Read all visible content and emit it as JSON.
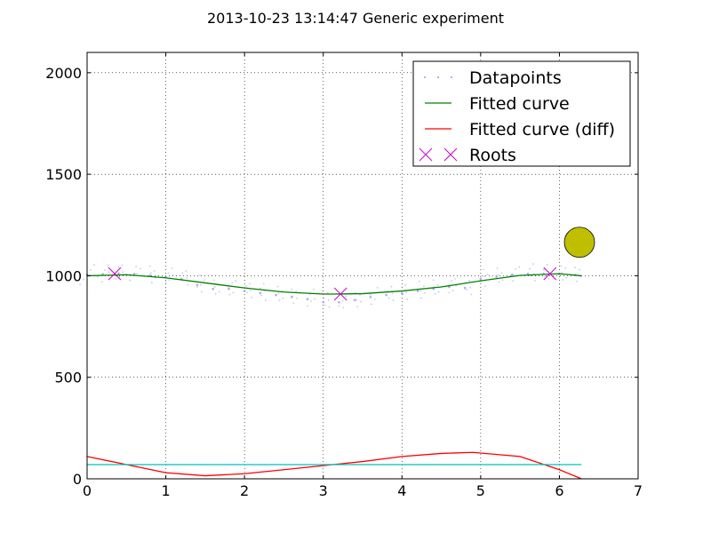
{
  "chart_data": {
    "type": "scatter",
    "title": "2013-10-23 13:14:47 Generic experiment",
    "xlabel": "",
    "ylabel": "",
    "xlim": [
      0,
      7
    ],
    "ylim": [
      0,
      2100
    ],
    "grid": true,
    "x_ticks": [
      "0",
      "1",
      "2",
      "3",
      "4",
      "5",
      "6",
      "7"
    ],
    "y_ticks": [
      "0",
      "500",
      "1000",
      "1500",
      "2000"
    ],
    "legend_position": "top-right",
    "legend": [
      {
        "label": "Datapoints",
        "marker": "dots",
        "color": "#9999ee"
      },
      {
        "label": "Fitted curve",
        "marker": "line",
        "color": "#008000"
      },
      {
        "label": "Fitted curve (diff)",
        "marker": "line",
        "color": "#ff0000"
      },
      {
        "label": "Roots",
        "marker": "x",
        "color": "#cc00cc"
      }
    ],
    "series": [
      {
        "name": "Datapoints",
        "color": "#9999ee",
        "x": [
          0.0,
          0.2,
          0.4,
          0.6,
          0.8,
          1.0,
          1.2,
          1.4,
          1.6,
          1.8,
          2.0,
          2.2,
          2.4,
          2.6,
          2.8,
          3.0,
          3.2,
          3.4,
          3.6,
          3.8,
          4.0,
          4.2,
          4.4,
          4.6,
          4.8,
          5.0,
          5.2,
          5.4,
          5.6,
          5.8,
          6.0,
          6.2
        ],
        "y": [
          1005,
          1008,
          1012,
          1009,
          1002,
          995,
          985,
          955,
          935,
          935,
          925,
          915,
          905,
          895,
          885,
          870,
          870,
          880,
          895,
          905,
          915,
          925,
          935,
          945,
          940,
          985,
          995,
          1005,
          1010,
          1010,
          1008,
          1004
        ]
      },
      {
        "name": "Fitted curve",
        "color": "#008000",
        "x": [
          0.0,
          0.5,
          1.0,
          1.5,
          2.0,
          2.5,
          3.0,
          3.14,
          3.5,
          4.0,
          4.5,
          5.0,
          5.5,
          6.0,
          6.28
        ],
        "y": [
          1000,
          1005,
          990,
          965,
          940,
          920,
          910,
          910,
          912,
          925,
          945,
          975,
          1002,
          1010,
          1000
        ]
      },
      {
        "name": "Fitted curve (diff)",
        "color": "#ff0000",
        "x": [
          0.0,
          0.5,
          1.0,
          1.5,
          2.0,
          2.5,
          3.0,
          3.5,
          4.0,
          4.5,
          4.9,
          5.5,
          6.0,
          6.28
        ],
        "y": [
          110,
          70,
          30,
          15,
          25,
          45,
          65,
          85,
          110,
          125,
          130,
          110,
          45,
          0
        ]
      },
      {
        "name": "",
        "color": "#00bfbf",
        "x": [
          0.0,
          6.28
        ],
        "y": [
          70,
          70
        ]
      }
    ],
    "roots": {
      "name": "Roots",
      "color": "#cc00cc",
      "x": [
        0.35,
        3.22,
        5.88
      ],
      "y": [
        1010,
        910,
        1010
      ]
    },
    "marker_circle": {
      "color": "#bfbf00",
      "x": 6.3,
      "y": 1165
    }
  }
}
